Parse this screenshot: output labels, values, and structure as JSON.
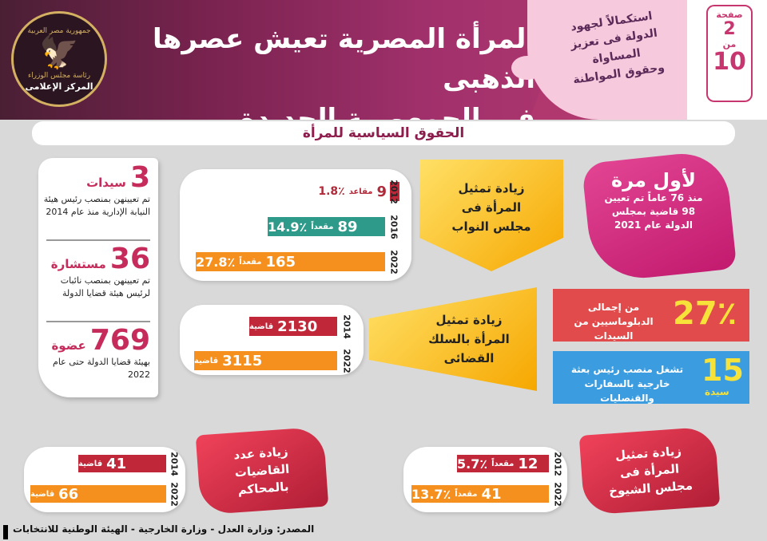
{
  "header": {
    "title_line1": "المرأة المصرية تعيش عصرها الذهبى",
    "title_line2": "فى الجمهورية الجديدة",
    "subtitle_line1": "استكمالاً لجهود",
    "subtitle_line2": "الدولة فى تعزيز المساواة",
    "subtitle_line3": "وحقوق المواطنة",
    "logo_top": "جمهورية مصر العربية",
    "logo_mid": "رئاسة مجلس الوزراء",
    "logo_bottom": "المركز الإعلامى",
    "page_word": "صفحة",
    "page_number": "2",
    "page_of": "من",
    "page_total": "10"
  },
  "section_title": "الحقوق السياسية للمرأة",
  "judges_card": {
    "items": [
      {
        "number": "3",
        "unit": "سيدات",
        "desc": "تم تعيينهن بمنصب رئيس هيئة النيابة الإدارية منذ عام 2014"
      },
      {
        "number": "36",
        "unit": "مستشارة",
        "desc": "تم تعيينهن بمنصب نائبات لرئيس هيئة قضايا الدولة"
      },
      {
        "number": "769",
        "unit": "عضوة",
        "desc": "بهيئة قضايا الدولة حتى عام 2022"
      }
    ]
  },
  "parliament": {
    "label": "زيادة تمثيل المرأة فى مجلس النواب",
    "rows": [
      {
        "year": "2012",
        "value": "9",
        "unit": "مقاعد",
        "pct": "1.8٪",
        "share": 0.018
      },
      {
        "year": "2016",
        "value": "89",
        "unit": "مقعداً",
        "pct": "14.9٪",
        "share": 0.149
      },
      {
        "year": "2022",
        "value": "165",
        "unit": "مقعداً",
        "pct": "27.8٪",
        "share": 0.278
      }
    ]
  },
  "judiciary": {
    "label": "زيادة تمثيل المرأة بالسلك القضائى",
    "rows": [
      {
        "year": "2014",
        "value": "2130",
        "unit": "قاضية",
        "amount": 2130
      },
      {
        "year": "2022",
        "value": "3115",
        "unit": "قاضية",
        "amount": 3115
      }
    ]
  },
  "first_time": {
    "headline": "لأول مرة",
    "body": "منذ 76 عاماً تم تعيين 98 قاضية بمجلس الدولة عام 2021"
  },
  "diplomats": {
    "number": "27٪",
    "text": "من إجمالى الدبلوماسيين من السيدات"
  },
  "ambassadors": {
    "number": "15",
    "unit": "سيدة",
    "text": "تشغل منصب رئيس بعثة خارجية بالسفارات والقنصليات"
  },
  "courts": {
    "label": "زيادة عدد القاضيات بالمحاكم",
    "rows": [
      {
        "year": "2014",
        "value": "41",
        "unit": "قاضية",
        "amount": 41
      },
      {
        "year": "2022",
        "value": "66",
        "unit": "قاضية",
        "amount": 66
      }
    ]
  },
  "senate": {
    "label": "زيادة تمثيل المرأة فى مجلس الشيوخ",
    "rows": [
      {
        "year": "2012",
        "value": "12",
        "unit": "مقعداً",
        "pct": "5.7٪",
        "share": 0.057
      },
      {
        "year": "2022",
        "value": "41",
        "unit": "مقعداً",
        "pct": "13.7٪",
        "share": 0.137
      }
    ]
  },
  "footer": {
    "source": "المصدر: وزارة العدل - وزارة الخارجية - الهيئة الوطنية للانتخابات"
  },
  "colors": {
    "red": "#c0283a",
    "teal": "#2e9a8a",
    "orange": "#f5901e",
    "pink": "#c62c5b"
  }
}
